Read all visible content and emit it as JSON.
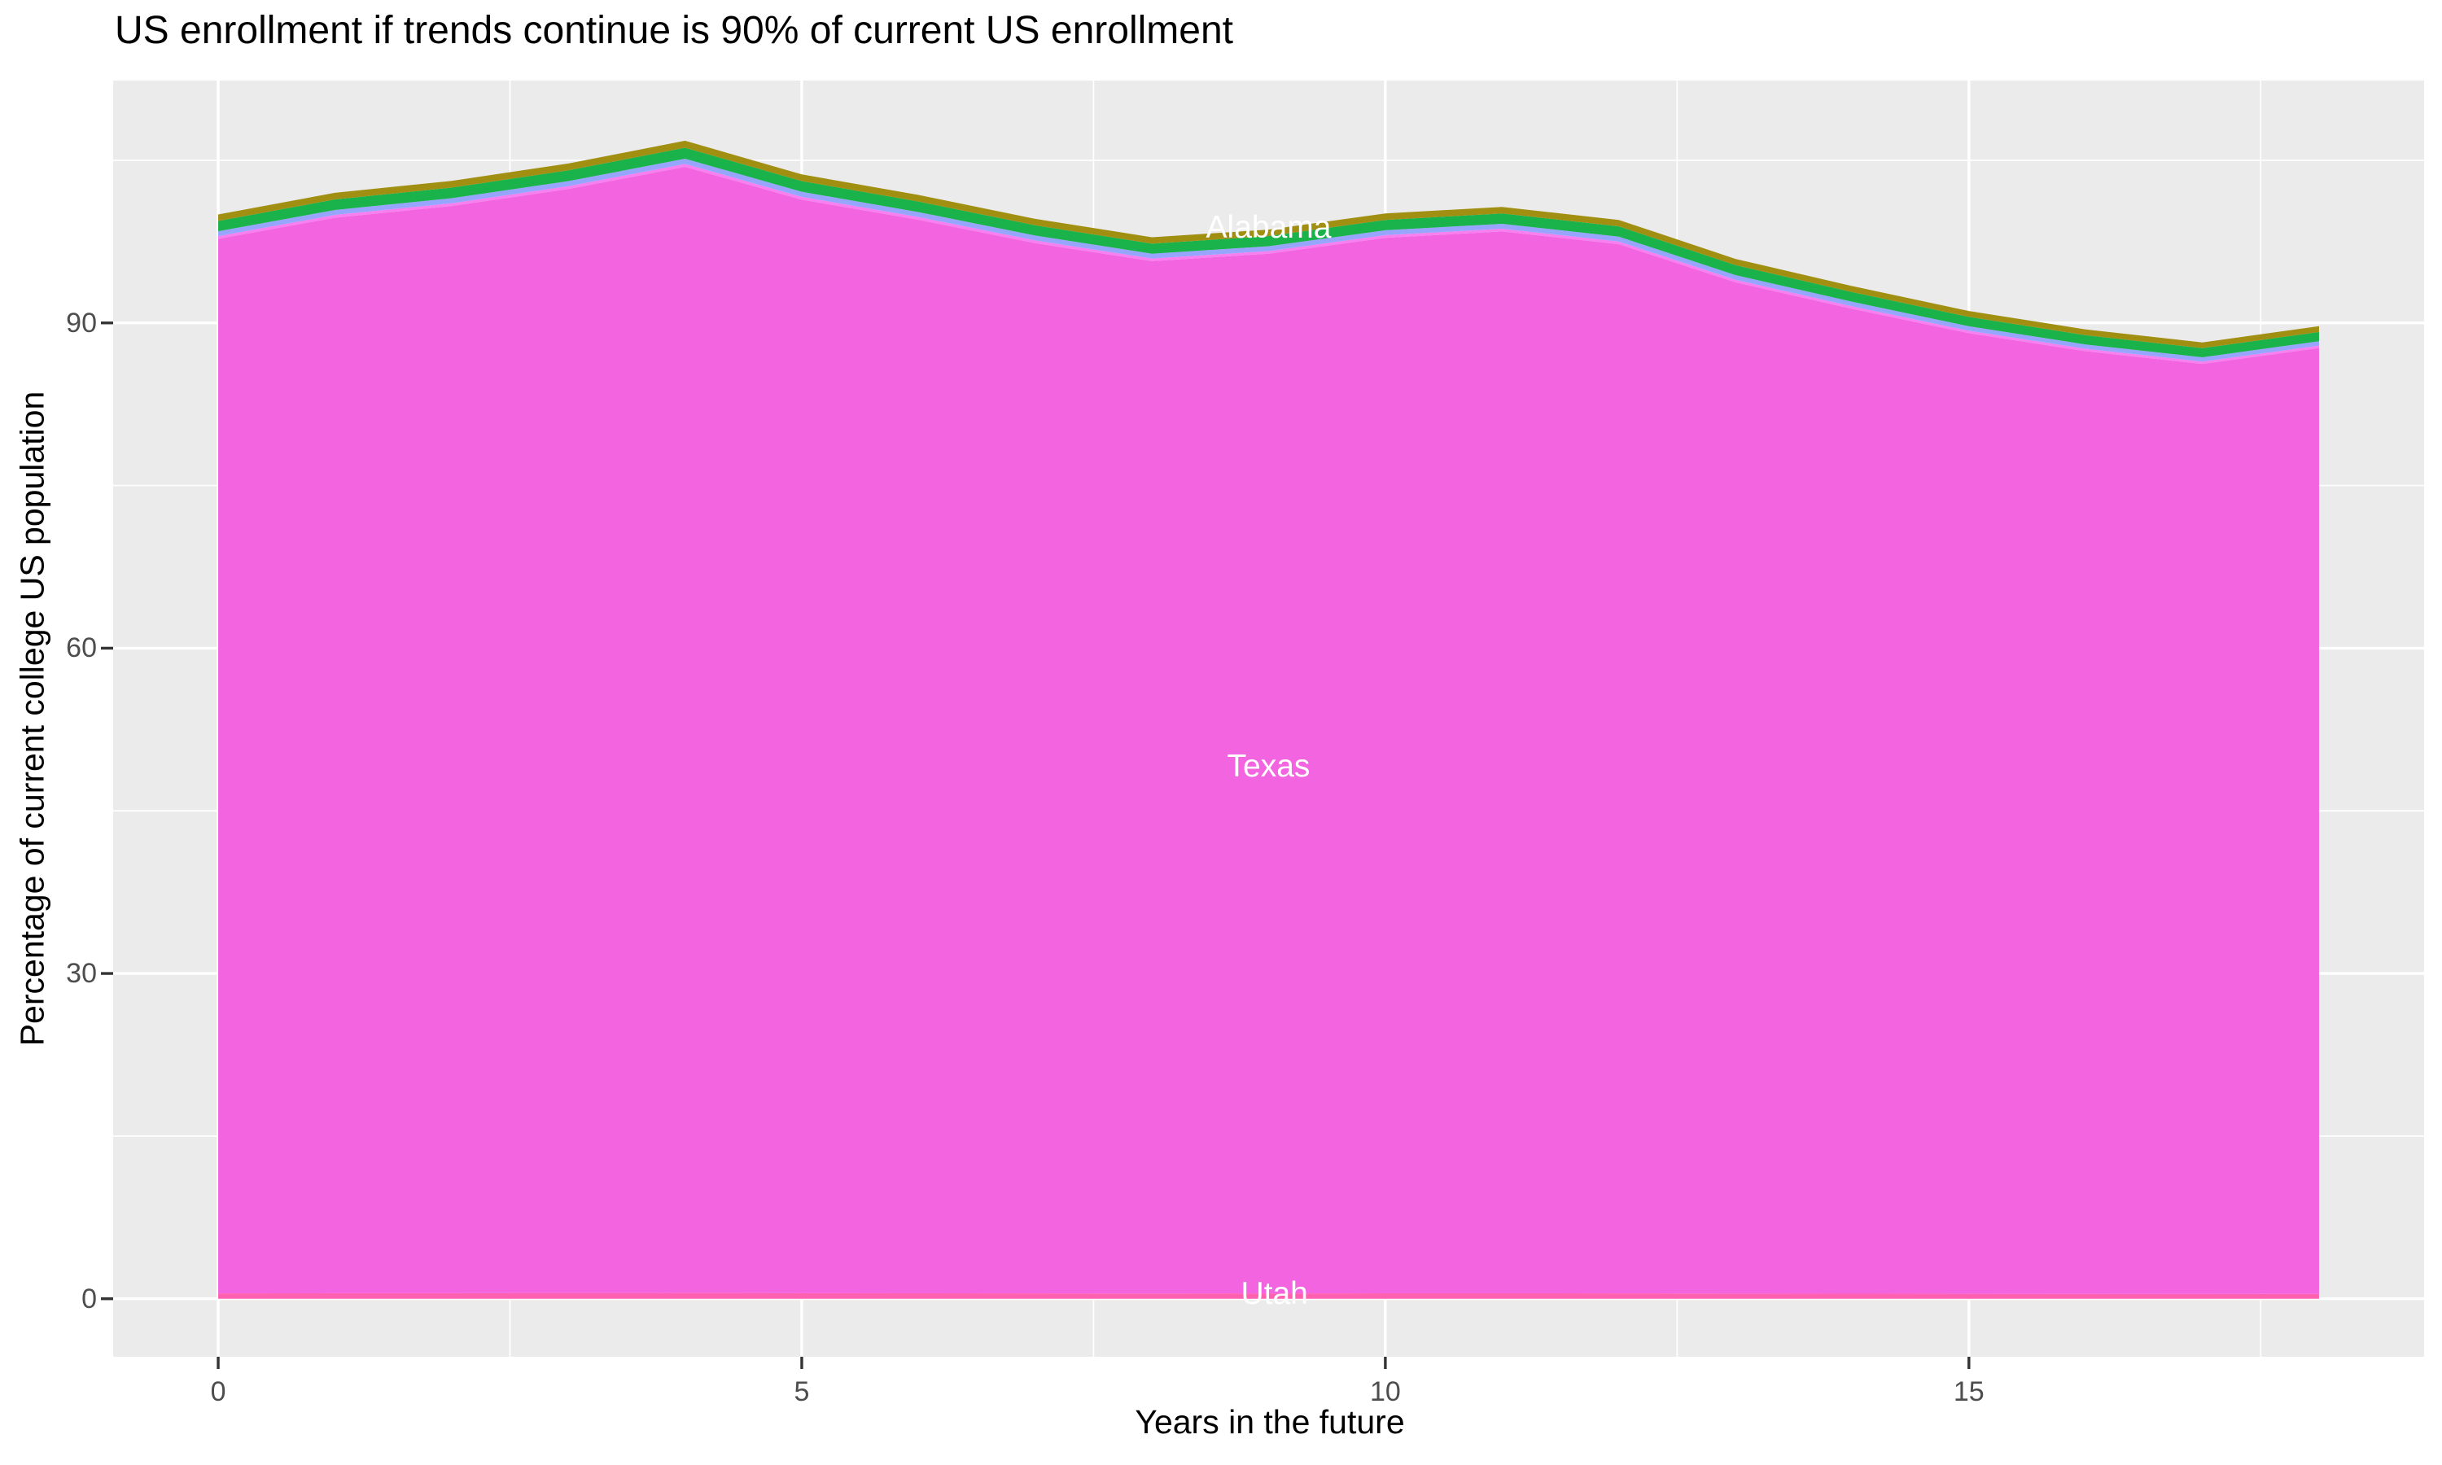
{
  "title": "US enrollment if trends continue is 90% of current US enrollment",
  "x_axis": {
    "label": "Years in the future",
    "tick_labels": [
      "0",
      "5",
      "10",
      "15"
    ],
    "tick_values": [
      0,
      5,
      10,
      15
    ],
    "minor_tick_values": [
      2.5,
      7.5,
      12.5,
      17.5
    ],
    "domain": [
      -0.9,
      18.9
    ]
  },
  "y_axis": {
    "label": "Percentage of current college US population",
    "tick_labels": [
      "0",
      "30",
      "60",
      "90"
    ],
    "tick_values": [
      0,
      30,
      60,
      90
    ],
    "minor_tick_values": [
      15,
      45,
      75,
      105
    ],
    "domain": [
      -5.35,
      112.35
    ]
  },
  "colors": {
    "panel_bg": "#EBEBEB",
    "grid": "#FFFFFF",
    "tick_mark": "#333333",
    "tick_label": "#4D4D4D",
    "title_text": "#000000",
    "annotation_text": "#FFFFFF"
  },
  "chart_data": {
    "type": "area",
    "stacked": true,
    "title": "US enrollment if trends continue is 90% of current US enrollment",
    "xlabel": "Years in the future",
    "ylabel": "Percentage of current college US population",
    "x": [
      0,
      1,
      2,
      3,
      4,
      5,
      6,
      7,
      8,
      9,
      10,
      11,
      12,
      13,
      14,
      15,
      16,
      17,
      18
    ],
    "total_percent": [
      100.0,
      102.0,
      103.1,
      104.7,
      106.8,
      103.7,
      101.8,
      99.6,
      97.9,
      98.6,
      100.1,
      100.7,
      99.5,
      95.9,
      93.4,
      91.1,
      89.4,
      88.2,
      89.7
    ],
    "layers": [
      {
        "name": "bottom-pink-band",
        "color": "#FF61B0",
        "share_of_total": 0.005
      },
      {
        "name": "texas-band",
        "color": "#F364E0",
        "share_of_total": 0.9725
      },
      {
        "name": "hairline-pink-band",
        "color": "#F77FF0",
        "share_of_total": 0.0025
      },
      {
        "name": "periwinkle-band",
        "color": "#97A5FF",
        "share_of_total": 0.0045
      },
      {
        "name": "green-band",
        "color": "#1AB24B",
        "share_of_total": 0.0095
      },
      {
        "name": "olive-band",
        "color": "#A18F12",
        "share_of_total": 0.006
      }
    ],
    "annotations": [
      {
        "text": "Alabama",
        "x": 9.0,
        "y": 98.8
      },
      {
        "text": "Texas",
        "x": 9.0,
        "y": 49.1
      },
      {
        "text": "Utah",
        "x": 9.05,
        "y": 0.45
      }
    ],
    "xlim": [
      0,
      18
    ],
    "ylim": [
      0,
      112
    ],
    "grid": true,
    "legend": false
  }
}
